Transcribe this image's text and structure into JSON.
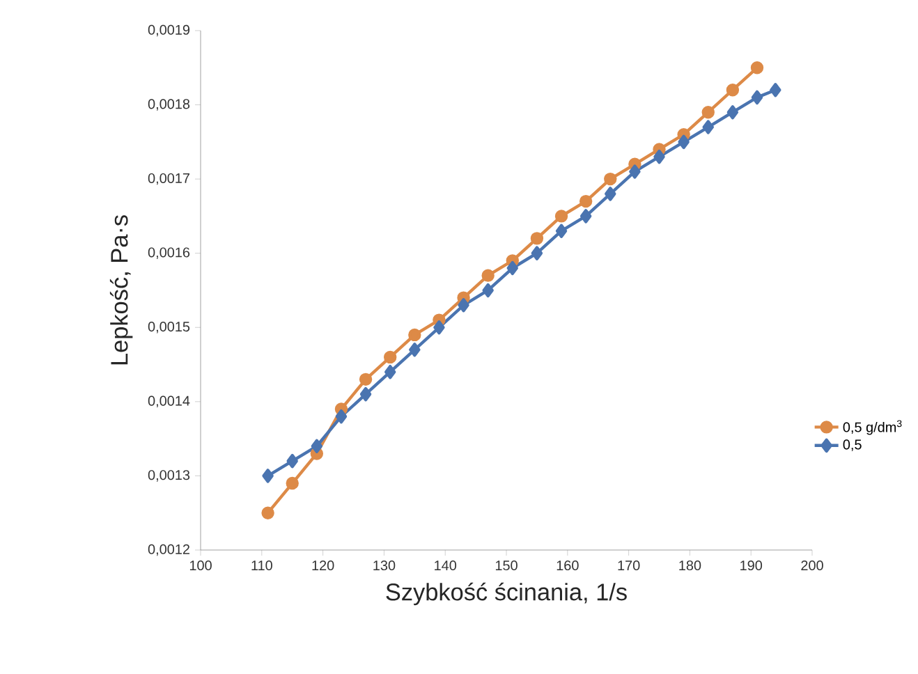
{
  "chart_data": {
    "type": "line",
    "xlabel": "Szybkość ścinania, 1/s",
    "ylabel": "Lepkość, Pa·s",
    "xlim": [
      100,
      200
    ],
    "xticks": [
      100,
      110,
      120,
      130,
      140,
      150,
      160,
      170,
      180,
      190,
      200
    ],
    "ylim": [
      0.0012,
      0.0019
    ],
    "yticks": [
      {
        "value": 0.0012,
        "label": "0,0012"
      },
      {
        "value": 0.0013,
        "label": "0,0013"
      },
      {
        "value": 0.0014,
        "label": "0,0014"
      },
      {
        "value": 0.0015,
        "label": "0,0015"
      },
      {
        "value": 0.0016,
        "label": "0,0016"
      },
      {
        "value": 0.0017,
        "label": "0,0017"
      },
      {
        "value": 0.0018,
        "label": "0,0018"
      },
      {
        "value": 0.0019,
        "label": "0,0019"
      }
    ],
    "grid": false,
    "legend": "right",
    "line_style": "solid",
    "x": [
      111,
      115,
      119,
      123,
      127,
      131,
      135,
      139,
      143,
      147,
      151,
      155,
      159,
      163,
      167,
      171,
      175,
      179,
      183,
      187,
      191
    ],
    "series": [
      {
        "name": "0,5 g/dm$^{3}$",
        "color": "#dd8a47",
        "marker": "circle",
        "values": [
          0.00125,
          0.00129,
          0.00133,
          0.00139,
          0.00143,
          0.00146,
          0.00149,
          0.00151,
          0.00154,
          0.00157,
          0.00159,
          0.00162,
          0.00165,
          0.00167,
          0.0017,
          0.00172,
          0.00174,
          0.00176,
          0.00179,
          0.00182,
          0.00185
        ]
      },
      {
        "name": "0,5",
        "color": "#4a74b0",
        "marker": "diamond",
        "x": [
          111,
          115,
          119,
          123,
          127,
          131,
          135,
          139,
          143,
          147,
          151,
          155,
          159,
          163,
          167,
          171,
          175,
          179,
          183,
          187,
          191,
          194
        ],
        "values": [
          0.0013,
          0.00132,
          0.00134,
          0.00138,
          0.00141,
          0.00144,
          0.00147,
          0.0015,
          0.00153,
          0.00155,
          0.00158,
          0.0016,
          0.00163,
          0.00165,
          0.00168,
          0.00171,
          0.00173,
          0.00175,
          0.00177,
          0.00179,
          0.00181,
          0.00182
        ]
      }
    ]
  }
}
